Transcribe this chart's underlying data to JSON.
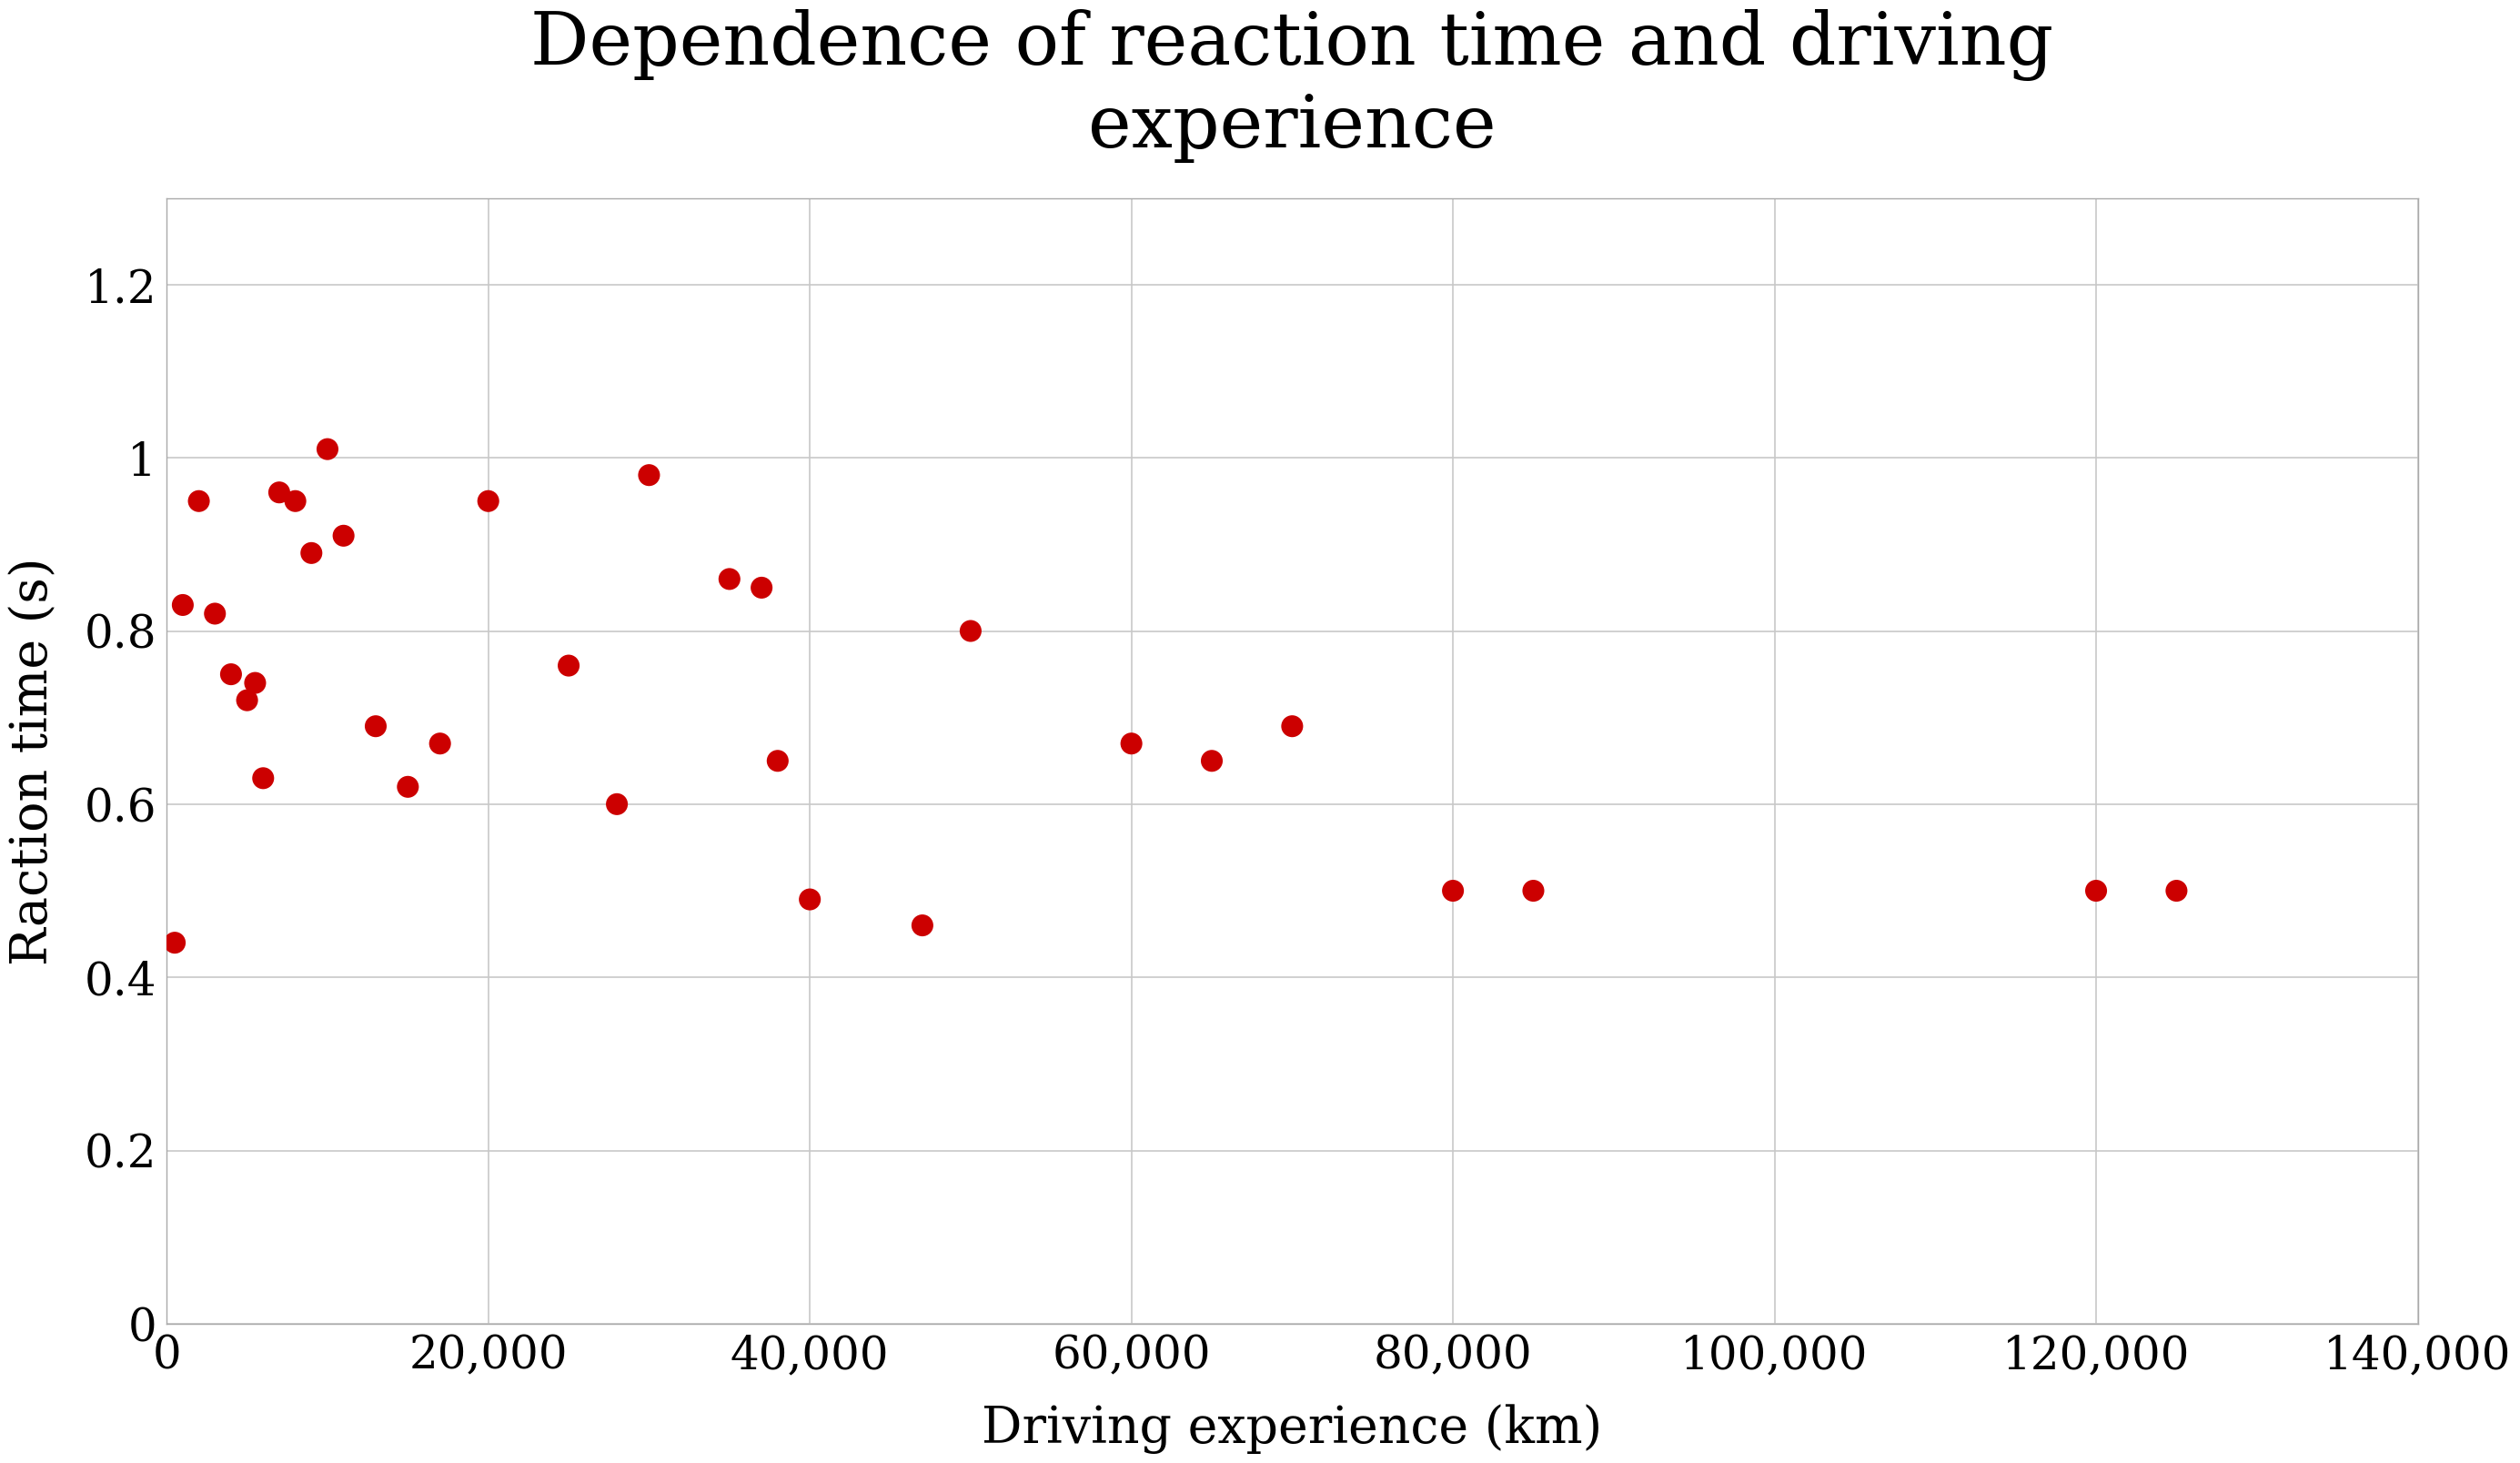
{
  "title": "Dependence of reaction time and driving\nexperience",
  "xlabel": "Driving experience (km)",
  "ylabel": "Raction time (s)",
  "x_data": [
    500,
    1000,
    2000,
    3000,
    4000,
    5000,
    5500,
    6000,
    7000,
    8000,
    9000,
    10000,
    11000,
    13000,
    15000,
    17000,
    20000,
    25000,
    28000,
    30000,
    35000,
    37000,
    38000,
    40000,
    47000,
    50000,
    60000,
    65000,
    70000,
    80000,
    85000,
    120000,
    125000
  ],
  "y_data": [
    0.44,
    0.83,
    0.95,
    0.82,
    0.75,
    0.72,
    0.74,
    0.63,
    0.96,
    0.95,
    0.89,
    1.01,
    0.91,
    0.69,
    0.62,
    0.67,
    0.95,
    0.76,
    0.6,
    0.98,
    0.86,
    0.85,
    0.65,
    0.49,
    0.46,
    0.8,
    0.67,
    0.65,
    0.69,
    0.5,
    0.5,
    0.5,
    0.5
  ],
  "dot_color": "#cc0000",
  "dot_size": 300,
  "xlim": [
    0,
    140000
  ],
  "ylim": [
    0,
    1.3
  ],
  "xticks": [
    0,
    20000,
    40000,
    60000,
    80000,
    100000,
    120000,
    140000
  ],
  "yticks": [
    0,
    0.2,
    0.4,
    0.6,
    0.8,
    1.0,
    1.2
  ],
  "grid_color": "#c8c8c8",
  "background_color": "#ffffff",
  "title_fontsize": 58,
  "axis_label_fontsize": 40,
  "tick_fontsize": 36
}
